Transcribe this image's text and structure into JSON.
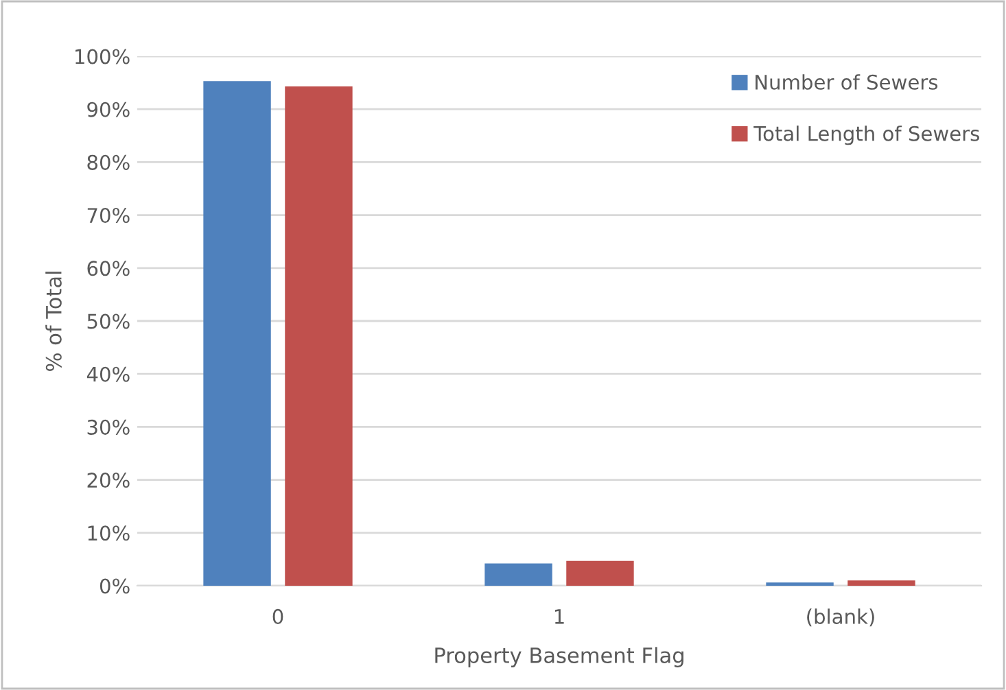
{
  "chart_data": {
    "type": "bar",
    "xlabel": "Property Basement Flag",
    "ylabel": "% of Total",
    "categories": [
      "0",
      "1",
      "(blank)"
    ],
    "series": [
      {
        "name": "Number of Sewers",
        "color": "#4f81bd",
        "values": [
          95.3,
          4.2,
          0.6
        ]
      },
      {
        "name": "Total Length of Sewers",
        "color": "#c0504d",
        "values": [
          94.3,
          4.7,
          1.0
        ]
      }
    ],
    "ylim": [
      0,
      100
    ],
    "yticks": [
      {
        "value": 0,
        "label": "0%"
      },
      {
        "value": 10,
        "label": "10%"
      },
      {
        "value": 20,
        "label": "20%"
      },
      {
        "value": 30,
        "label": "30%"
      },
      {
        "value": 40,
        "label": "40%"
      },
      {
        "value": 50,
        "label": "50%"
      },
      {
        "value": 60,
        "label": "60%"
      },
      {
        "value": 70,
        "label": "70%"
      },
      {
        "value": 80,
        "label": "80%"
      },
      {
        "value": 90,
        "label": "90%"
      },
      {
        "value": 100,
        "label": "100%"
      }
    ],
    "grid": "y",
    "legend": "top right"
  }
}
